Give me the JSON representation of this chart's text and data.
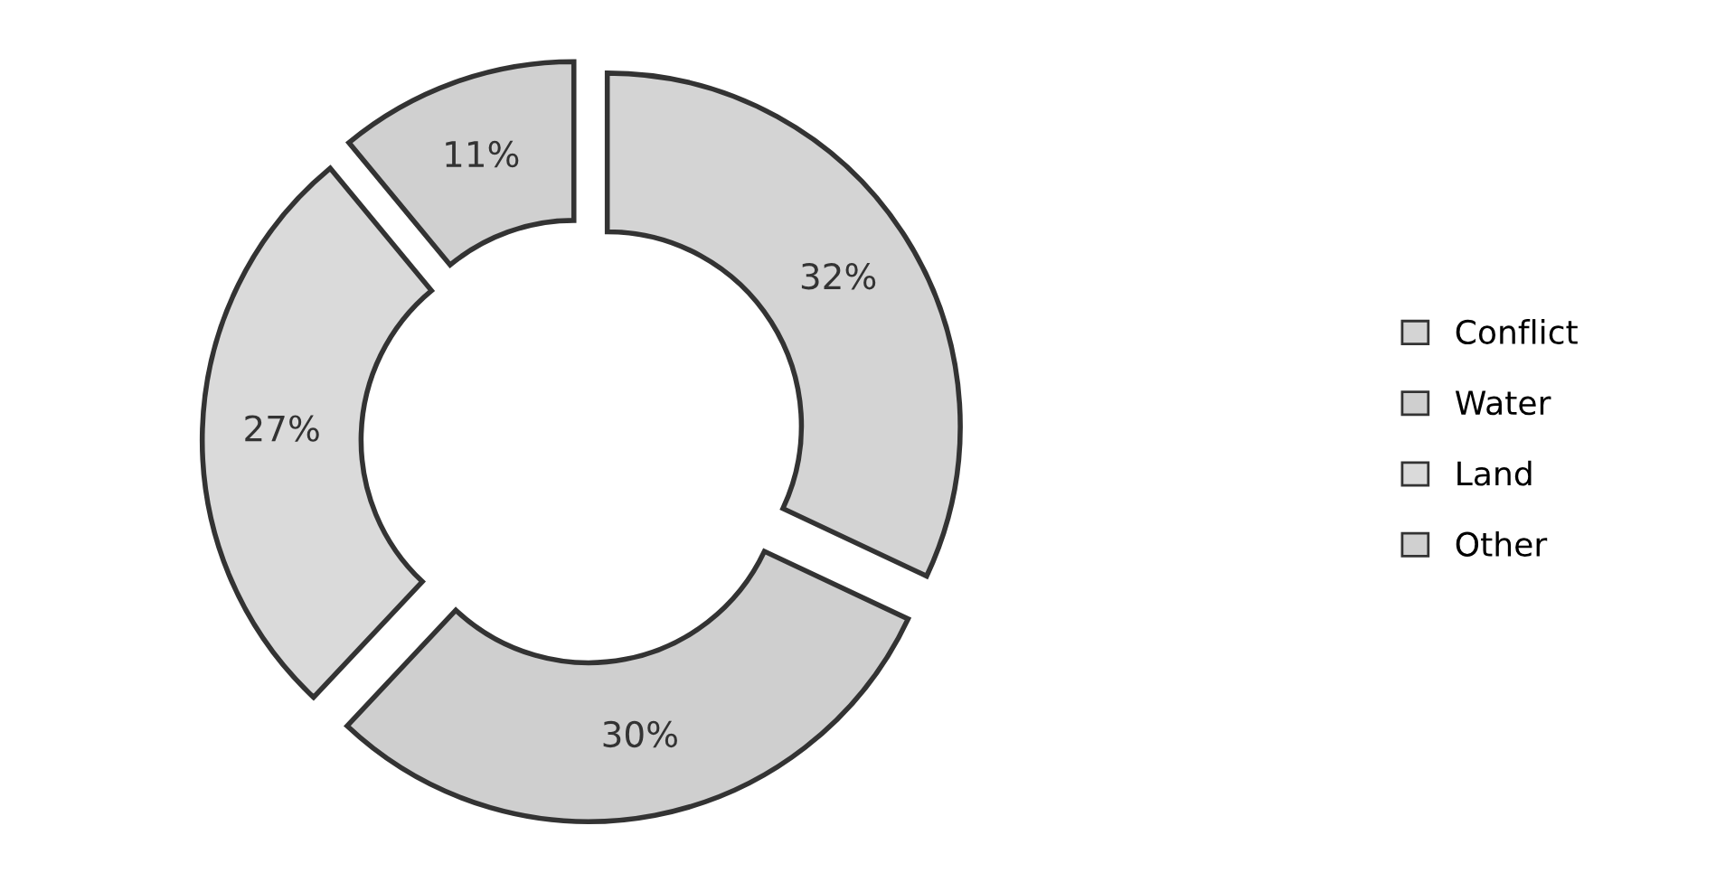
{
  "chart_data": {
    "type": "donut",
    "categories": [
      "Conflict",
      "Water",
      "Land",
      "Other"
    ],
    "values": [
      32,
      30,
      27,
      11
    ],
    "colors": [
      "#d4d4d4",
      "#cfcfcf",
      "#dadada",
      "#d0d0d0"
    ],
    "value_labels": [
      "32%",
      "30%",
      "27%",
      "11%"
    ],
    "legend": "right"
  }
}
